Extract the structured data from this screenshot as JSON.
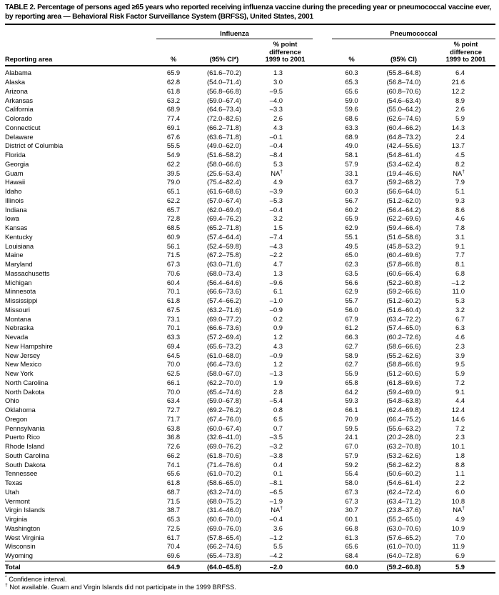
{
  "title": "TABLE 2. Percentage of persons aged ≥65 years who reported receiving influenza vaccine during the preceding year or pneumococcal vaccine ever, by reporting area — Behavioral Risk Factor Surveillance System (BRFSS), United States, 2001",
  "table": {
    "group_headers": {
      "influenza": "Influenza",
      "pneumococcal": "Pneumococcal"
    },
    "column_headers": {
      "reporting_area": "Reporting area",
      "influenza_pct": "%",
      "influenza_ci": "(95% CI*)",
      "influenza_diff": "% point\ndifference\n1999 to 2001",
      "pneumococcal_pct": "%",
      "pneumococcal_ci": "(95% CI)",
      "pneumococcal_diff": "% point\ndifference\n1999 to 2001"
    },
    "rows": [
      [
        "Alabama",
        "65.9",
        "(61.6–70.2)",
        "1.3",
        "60.3",
        "(55.8–64.8)",
        "6.4"
      ],
      [
        "Alaska",
        "62.8",
        "(54.0–71.4)",
        "3.0",
        "65.3",
        "(56.8–74.0)",
        "21.6"
      ],
      [
        "Arizona",
        "61.8",
        "(56.8–66.8)",
        "–9.5",
        "65.6",
        "(60.8–70.6)",
        "12.2"
      ],
      [
        "Arkansas",
        "63.2",
        "(59.0–67.4)",
        "–4.0",
        "59.0",
        "(54.6–63.4)",
        "8.9"
      ],
      [
        "California",
        "68.9",
        "(64.6–73.4)",
        "–3.3",
        "59.6",
        "(55.0–64.2)",
        "2.6"
      ],
      [
        "Colorado",
        "77.4",
        "(72.0–82.6)",
        "2.6",
        "68.6",
        "(62.6–74.6)",
        "5.9"
      ],
      [
        "Connecticut",
        "69.1",
        "(66.2–71.8)",
        "4.3",
        "63.3",
        "(60.4–66.2)",
        "14.3"
      ],
      [
        "Delaware",
        "67.6",
        "(63.6–71.8)",
        "–0.1",
        "68.9",
        "(64.8–73.2)",
        "2.4"
      ],
      [
        "District of Columbia",
        "55.5",
        "(49.0–62.0)",
        "–0.4",
        "49.0",
        "(42.4–55.6)",
        "13.7"
      ],
      [
        "Florida",
        "54.9",
        "(51.6–58.2)",
        "–8.4",
        "58.1",
        "(54.8–61.4)",
        "4.5"
      ],
      [
        "Georgia",
        "62.2",
        "(58.0–66.6)",
        "5.3",
        "57.9",
        "(53.4–62.4)",
        "8.2"
      ],
      [
        "Guam",
        "39.5",
        "(25.6–53.4)",
        "NA†",
        "33.1",
        "(19.4–46.6)",
        "NA†"
      ],
      [
        "Hawaii",
        "79.0",
        "(75.4–82.4)",
        "4.9",
        "63.7",
        "(59.2–68.2)",
        "7.9"
      ],
      [
        "Idaho",
        "65.1",
        "(61.6–68.6)",
        "–3.9",
        "60.3",
        "(56.6–64.0)",
        "5.1"
      ],
      [
        "Illinois",
        "62.2",
        "(57.0–67.4)",
        "–5.3",
        "56.7",
        "(51.2–62.0)",
        "9.3"
      ],
      [
        "Indiana",
        "65.7",
        "(62.0–69.4)",
        "–0.4",
        "60.2",
        "(56.4–64.2)",
        "8.6"
      ],
      [
        "Iowa",
        "72.8",
        "(69.4–76.2)",
        "3.2",
        "65.9",
        "(62.2–69.6)",
        "4.6"
      ],
      [
        "Kansas",
        "68.5",
        "(65.2–71.8)",
        "1.5",
        "62.9",
        "(59.4–66.4)",
        "7.8"
      ],
      [
        "Kentucky",
        "60.9",
        "(57.4–64.4)",
        "–7.4",
        "55.1",
        "(51.6–58.6)",
        "3.1"
      ],
      [
        "Louisiana",
        "56.1",
        "(52.4–59.8)",
        "–4.3",
        "49.5",
        "(45.8–53.2)",
        "9.1"
      ],
      [
        "Maine",
        "71.5",
        "(67.2–75.8)",
        "–2.2",
        "65.0",
        "(60.4–69.6)",
        "7.7"
      ],
      [
        "Maryland",
        "67.3",
        "(63.0–71.6)",
        "4.7",
        "62.3",
        "(57.8–66.8)",
        "8.1"
      ],
      [
        "Massachusetts",
        "70.6",
        "(68.0–73.4)",
        "1.3",
        "63.5",
        "(60.6–66.4)",
        "6.8"
      ],
      [
        "Michigan",
        "60.4",
        "(56.4–64.6)",
        "–9.6",
        "56.6",
        "(52.2–60.8)",
        "–1.2"
      ],
      [
        "Minnesota",
        "70.1",
        "(66.6–73.6)",
        "6.1",
        "62.9",
        "(59.2–66.6)",
        "11.0"
      ],
      [
        "Mississippi",
        "61.8",
        "(57.4–66.2)",
        "–1.0",
        "55.7",
        "(51.2–60.2)",
        "5.3"
      ],
      [
        "Missouri",
        "67.5",
        "(63.2–71.6)",
        "–0.9",
        "56.0",
        "(51.6–60.4)",
        "3.2"
      ],
      [
        "Montana",
        "73.1",
        "(69.0–77.2)",
        "0.2",
        "67.9",
        "(63.4–72.2)",
        "6.7"
      ],
      [
        "Nebraska",
        "70.1",
        "(66.6–73.6)",
        "0.9",
        "61.2",
        "(57.4–65.0)",
        "6.3"
      ],
      [
        "Nevada",
        "63.3",
        "(57.2–69.4)",
        "1.2",
        "66.3",
        "(60.2–72.6)",
        "4.6"
      ],
      [
        "New Hampshire",
        "69.4",
        "(65.6–73.2)",
        "4.3",
        "62.7",
        "(58.6–66.6)",
        "2.3"
      ],
      [
        "New Jersey",
        "64.5",
        "(61.0–68.0)",
        "–0.9",
        "58.9",
        "(55.2–62.6)",
        "3.9"
      ],
      [
        "New Mexico",
        "70.0",
        "(66.4–73.6)",
        "1.2",
        "62.7",
        "(58.8–66.6)",
        "9.5"
      ],
      [
        "New York",
        "62.5",
        "(58.0–67.0)",
        "–1.3",
        "55.9",
        "(51.2–60.6)",
        "5.9"
      ],
      [
        "North Carolina",
        "66.1",
        "(62.2–70.0)",
        "1.9",
        "65.8",
        "(61.8–69.6)",
        "7.2"
      ],
      [
        "North Dakota",
        "70.0",
        "(65.4–74.6)",
        "2.8",
        "64.2",
        "(59.4–69.0)",
        "9.1"
      ],
      [
        "Ohio",
        "63.4",
        "(59.0–67.8)",
        "–5.4",
        "59.3",
        "(54.8–63.8)",
        "4.4"
      ],
      [
        "Oklahoma",
        "72.7",
        "(69.2–76.2)",
        "0.8",
        "66.1",
        "(62.4–69.8)",
        "12.4"
      ],
      [
        "Oregon",
        "71.7",
        "(67.4–76.0)",
        "6.5",
        "70.9",
        "(66.4–75.2)",
        "14.6"
      ],
      [
        "Pennsylvania",
        "63.8",
        "(60.0–67.4)",
        "0.7",
        "59.5",
        "(55.6–63.2)",
        "7.2"
      ],
      [
        "Puerto Rico",
        "36.8",
        "(32.6–41.0)",
        "–3.5",
        "24.1",
        "(20.2–28.0)",
        "2.3"
      ],
      [
        "Rhode Island",
        "72.6",
        "(69.0–76.2)",
        "–3.2",
        "67.0",
        "(63.2–70.8)",
        "10.1"
      ],
      [
        "South Carolina",
        "66.2",
        "(61.8–70.6)",
        "–3.8",
        "57.9",
        "(53.2–62.6)",
        "1.8"
      ],
      [
        "South Dakota",
        "74.1",
        "(71.4–76.6)",
        "0.4",
        "59.2",
        "(56.2–62.2)",
        "8.8"
      ],
      [
        "Tennessee",
        "65.6",
        "(61.0–70.2)",
        "0.1",
        "55.4",
        "(50.6–60.2)",
        "1.1"
      ],
      [
        "Texas",
        "61.8",
        "(58.6–65.0)",
        "–8.1",
        "58.0",
        "(54.6–61.4)",
        "2.2"
      ],
      [
        "Utah",
        "68.7",
        "(63.2–74.0)",
        "–6.5",
        "67.3",
        "(62.4–72.4)",
        "6.0"
      ],
      [
        "Vermont",
        "71.5",
        "(68.0–75.2)",
        "–1.9",
        "67.3",
        "(63.4–71.2)",
        "10.8"
      ],
      [
        "Virgin Islands",
        "38.7",
        "(31.4–46.0)",
        "NA†",
        "30.7",
        "(23.8–37.6)",
        "NA†"
      ],
      [
        "Virginia",
        "65.3",
        "(60.6–70.0)",
        "–0.4",
        "60.1",
        "(55.2–65.0)",
        "4.9"
      ],
      [
        "Washington",
        "72.5",
        "(69.0–76.0)",
        "3.6",
        "66.8",
        "(63.0–70.6)",
        "10.9"
      ],
      [
        "West Virginia",
        "61.7",
        "(57.8–65.4)",
        "–1.2",
        "61.3",
        "(57.6–65.2)",
        "7.0"
      ],
      [
        "Wisconsin",
        "70.4",
        "(66.2–74.6)",
        "5.5",
        "65.6",
        "(61.0–70.0)",
        "11.9"
      ],
      [
        "Wyoming",
        "69.6",
        "(65.4–73.8)",
        "–4.2",
        "68.4",
        "(64.0–72.8)",
        "6.9"
      ]
    ],
    "total_row": [
      "Total",
      "64.9",
      "(64.0–65.8)",
      "–2.0",
      "60.0",
      "(59.2–60.8)",
      "5.9"
    ]
  },
  "footnotes": [
    {
      "marker": "*",
      "text": "Confidence interval."
    },
    {
      "marker": "†",
      "text": "Not available. Guam and Virgin Islands did not participate in the 1999 BRFSS."
    }
  ]
}
